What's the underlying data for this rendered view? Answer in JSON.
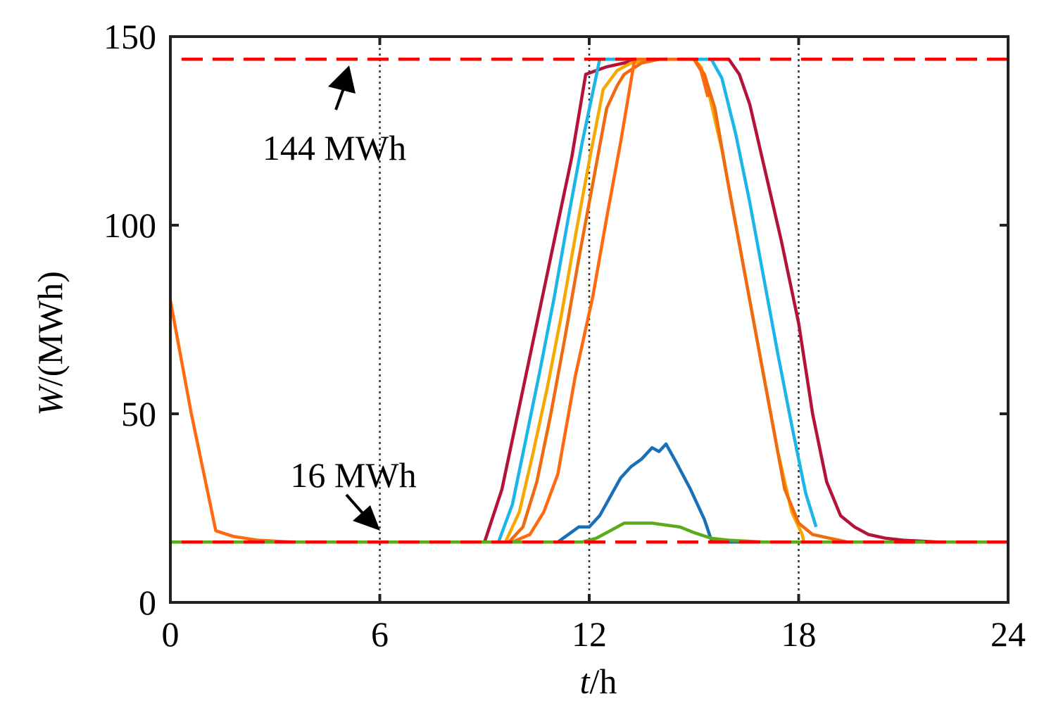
{
  "chart_data": {
    "type": "line",
    "title": "",
    "xlabel": {
      "var": "t",
      "unit": "/h"
    },
    "ylabel": {
      "var": "W",
      "unit": "/(MWh)"
    },
    "xlim": [
      0,
      24
    ],
    "ylim": [
      0,
      150
    ],
    "xticks": [
      0,
      6,
      12,
      18,
      24
    ],
    "yticks": [
      0,
      50,
      100,
      150
    ],
    "vgrid": [
      6,
      12,
      18
    ],
    "hlines": [
      {
        "name": "upper-limit",
        "value": 144,
        "color": "#ff0000"
      },
      {
        "name": "lower-limit",
        "value": 16,
        "color": "#ff0000"
      }
    ],
    "annotations": [
      {
        "name": "upper-limit-annotation",
        "text": "144 MWh",
        "target": [
          5,
          144
        ]
      },
      {
        "name": "lower-limit-annotation",
        "text": "16 MWh",
        "target": [
          6,
          16
        ]
      }
    ],
    "series": [
      {
        "name": "crimson",
        "color": "#b5123a",
        "x": [
          9.0,
          9.5,
          10.0,
          10.5,
          11.0,
          11.5,
          11.9,
          12.5,
          13.0,
          13.5,
          14.0,
          15.0,
          15.5,
          16.0,
          16.3,
          16.6,
          17.0,
          17.5,
          18.0,
          18.4,
          18.8,
          19.2,
          19.6,
          20.0,
          20.5,
          21.0,
          22.0,
          23.0,
          24.0
        ],
        "y": [
          16,
          30,
          52,
          74,
          96,
          118,
          140,
          142,
          143,
          144,
          144,
          144,
          144,
          144,
          140,
          132,
          116,
          96,
          74,
          50,
          32,
          23,
          20,
          18,
          17,
          16.5,
          16,
          16,
          16
        ]
      },
      {
        "name": "sky-blue",
        "color": "#1ab6e8",
        "x": [
          9.4,
          9.8,
          10.2,
          10.6,
          11.0,
          11.4,
          11.8,
          12.3,
          12.5,
          13.0,
          14.0,
          15.0,
          15.5,
          15.8,
          16.2,
          16.6,
          17.0,
          17.4,
          17.8,
          18.2,
          18.5
        ],
        "y": [
          16,
          26,
          44,
          62,
          81,
          102,
          122,
          144,
          144,
          144,
          144,
          144,
          144,
          139,
          124,
          106,
          86,
          66,
          47,
          29,
          20
        ]
      },
      {
        "name": "amber",
        "color": "#f5a800",
        "x": [
          9.6,
          10.0,
          10.4,
          10.8,
          11.2,
          11.6,
          12.0,
          12.4,
          12.8,
          13.2,
          13.6,
          14.0,
          15.0,
          15.2,
          15.4,
          15.8,
          16.2,
          16.6,
          17.0,
          17.4,
          17.8,
          18.1,
          18.15
        ],
        "y": [
          16,
          24,
          40,
          57,
          76,
          97,
          117,
          136,
          141,
          143,
          143.5,
          144,
          144,
          142,
          136,
          120,
          100,
          80,
          60,
          40,
          24,
          18,
          16
        ]
      },
      {
        "name": "dark-orange",
        "color": "#f06a10",
        "x": [
          9.7,
          10.1,
          10.5,
          10.9,
          11.3,
          11.7,
          12.1,
          12.5,
          12.8,
          13.0,
          13.5,
          14.0,
          15.0,
          15.3,
          15.6,
          16.0,
          16.4,
          16.8,
          17.2,
          17.6,
          18.0,
          18.4,
          18.9,
          19.4
        ],
        "y": [
          16,
          20,
          32,
          50,
          70,
          91,
          111,
          131,
          137,
          140,
          143,
          144,
          144,
          140,
          131,
          110,
          90,
          70,
          50,
          30,
          21,
          18,
          17,
          16
        ]
      },
      {
        "name": "orange",
        "color": "#ff6a10",
        "x": [
          0.0,
          0.6,
          1.3,
          1.8,
          2.5,
          3.5,
          5.0,
          6.0,
          8.0,
          9.0,
          9.8,
          10.3,
          10.7,
          11.1,
          11.6,
          12.1,
          12.5,
          12.9,
          13.3,
          13.8,
          14.0,
          15.0,
          15.2,
          15.4
        ],
        "y": [
          80,
          50,
          19,
          17.5,
          16.5,
          16,
          16,
          16,
          16,
          16,
          16,
          18,
          24,
          34,
          60,
          81,
          102,
          122,
          144,
          144,
          144,
          144,
          141,
          134
        ]
      },
      {
        "name": "blue",
        "color": "#1a70b8",
        "x": [
          0.0,
          10.0,
          11.1,
          11.4,
          11.7,
          12.0,
          12.3,
          12.6,
          12.9,
          13.2,
          13.5,
          13.8,
          14.0,
          14.2,
          14.5,
          14.9,
          15.3,
          15.5,
          15.7,
          16.0,
          24.0
        ],
        "y": [
          16,
          16,
          16,
          18,
          20,
          20,
          23,
          28,
          33,
          36,
          38,
          41,
          40,
          42,
          37,
          30,
          22,
          16.5,
          16,
          16,
          16
        ]
      },
      {
        "name": "green",
        "color": "#5aaa1a",
        "x": [
          0.0,
          11.8,
          12.2,
          12.6,
          13.0,
          13.4,
          13.8,
          14.2,
          14.6,
          15.0,
          15.5,
          16.0,
          17.0,
          24.0
        ],
        "y": [
          16,
          16,
          17,
          19,
          21,
          21,
          21,
          20.5,
          20,
          18.5,
          17,
          16.5,
          16,
          16
        ]
      }
    ]
  }
}
